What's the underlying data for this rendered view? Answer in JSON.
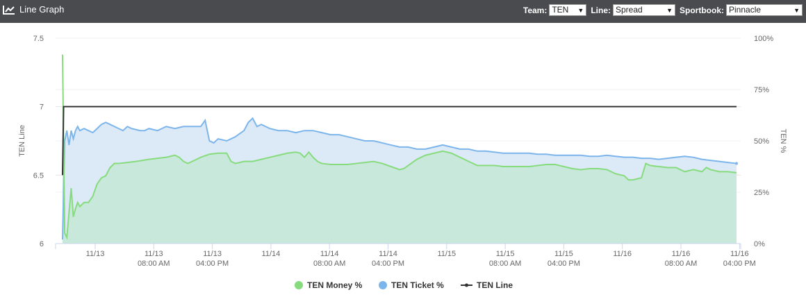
{
  "header": {
    "title": "Line Graph",
    "team_label": "Team:",
    "team_value": "TEN",
    "line_label": "Line:",
    "line_value": "Spread",
    "sportsbook_label": "Sportbook:",
    "sportsbook_value": "Pinnacle"
  },
  "chart_data": {
    "type": "line",
    "left_axis": {
      "label": "TEN Line",
      "range": [
        6,
        7.5
      ],
      "ticks": [
        "6",
        "6.5",
        "7",
        "7.5"
      ]
    },
    "right_axis": {
      "label": "TEN %",
      "range": [
        0,
        100
      ],
      "ticks": [
        "0%",
        "25%",
        "50%",
        "75%",
        "100%"
      ]
    },
    "x_ticks": [
      {
        "line1": "11/13",
        "line2": ""
      },
      {
        "line1": "11/13",
        "line2": "08:00 AM"
      },
      {
        "line1": "11/13",
        "line2": "04:00 PM"
      },
      {
        "line1": "11/14",
        "line2": ""
      },
      {
        "line1": "11/14",
        "line2": "08:00 AM"
      },
      {
        "line1": "11/14",
        "line2": "04:00 PM"
      },
      {
        "line1": "11/15",
        "line2": ""
      },
      {
        "line1": "11/15",
        "line2": "08:00 AM"
      },
      {
        "line1": "11/15",
        "line2": "04:00 PM"
      },
      {
        "line1": "11/16",
        "line2": ""
      },
      {
        "line1": "11/16",
        "line2": "08:00 AM"
      },
      {
        "line1": "11/16",
        "line2": "04:00 PM"
      }
    ],
    "legend": [
      "TEN Money %",
      "TEN Ticket %",
      "TEN Line"
    ],
    "legend_position": "bottom-center",
    "grid": true,
    "series": [
      {
        "name": "TEN Money %",
        "color": "#86dc7c",
        "fill": "#c9e8dc",
        "axis": "right",
        "points": [
          [
            0,
            92
          ],
          [
            0.5,
            5
          ],
          [
            1,
            3
          ],
          [
            1.5,
            15
          ],
          [
            2,
            27
          ],
          [
            2.5,
            13
          ],
          [
            3,
            17
          ],
          [
            3.5,
            20
          ],
          [
            4,
            18
          ],
          [
            5,
            20
          ],
          [
            6,
            20
          ],
          [
            7,
            23
          ],
          [
            8,
            29
          ],
          [
            9,
            32
          ],
          [
            10,
            33
          ],
          [
            11,
            37
          ],
          [
            12,
            39
          ],
          [
            13,
            39
          ],
          [
            15,
            39.5
          ],
          [
            17,
            40
          ],
          [
            20,
            41
          ],
          [
            22,
            41.5
          ],
          [
            24,
            42
          ],
          [
            26,
            43
          ],
          [
            27,
            42
          ],
          [
            28,
            40
          ],
          [
            29,
            39
          ],
          [
            30,
            40
          ],
          [
            32,
            42
          ],
          [
            34,
            43.5
          ],
          [
            36,
            44
          ],
          [
            38,
            44
          ],
          [
            39,
            40
          ],
          [
            40,
            39
          ],
          [
            42,
            40
          ],
          [
            44,
            40
          ],
          [
            46,
            41
          ],
          [
            48,
            42
          ],
          [
            50,
            43
          ],
          [
            52,
            44
          ],
          [
            54,
            44.5
          ],
          [
            55,
            44
          ],
          [
            56,
            42
          ],
          [
            57,
            44.5
          ],
          [
            58,
            42
          ],
          [
            59,
            40
          ],
          [
            60,
            39
          ],
          [
            62,
            38.5
          ],
          [
            64,
            38.5
          ],
          [
            66,
            38.5
          ],
          [
            68,
            39
          ],
          [
            70,
            39.5
          ],
          [
            72,
            40
          ],
          [
            74,
            39
          ],
          [
            76,
            37.5
          ],
          [
            78,
            36
          ],
          [
            79,
            36.5
          ],
          [
            80,
            38
          ],
          [
            82,
            41
          ],
          [
            84,
            43
          ],
          [
            86,
            44
          ],
          [
            88,
            45
          ],
          [
            90,
            44
          ],
          [
            92,
            42
          ],
          [
            94,
            40
          ],
          [
            96,
            38
          ],
          [
            98,
            38
          ],
          [
            100,
            38
          ],
          [
            102,
            37.5
          ],
          [
            104,
            37.5
          ],
          [
            106,
            37.5
          ],
          [
            108,
            37.5
          ],
          [
            110,
            38
          ],
          [
            112,
            38.5
          ],
          [
            114,
            38.5
          ],
          [
            116,
            37.5
          ],
          [
            118,
            36.5
          ],
          [
            120,
            36
          ],
          [
            122,
            36.5
          ],
          [
            124,
            36.5
          ],
          [
            126,
            36
          ],
          [
            128,
            34
          ],
          [
            130,
            33
          ],
          [
            131,
            31
          ],
          [
            132,
            31
          ],
          [
            134,
            32
          ],
          [
            135,
            39
          ],
          [
            136,
            38
          ],
          [
            138,
            37.5
          ],
          [
            140,
            37
          ],
          [
            142,
            37
          ],
          [
            144,
            35
          ],
          [
            146,
            36
          ],
          [
            148,
            35
          ],
          [
            149,
            37
          ],
          [
            150,
            36
          ],
          [
            152,
            35
          ],
          [
            154,
            35
          ],
          [
            156,
            34.5
          ]
        ]
      },
      {
        "name": "TEN Ticket %",
        "color": "#7cb5ec",
        "fill": "#dce9f6",
        "axis": "right",
        "points": [
          [
            0,
            2
          ],
          [
            0.5,
            50
          ],
          [
            1,
            55
          ],
          [
            1.5,
            48
          ],
          [
            2,
            55
          ],
          [
            2.5,
            51
          ],
          [
            3,
            55
          ],
          [
            3.5,
            57
          ],
          [
            4,
            55
          ],
          [
            5,
            56
          ],
          [
            6,
            55
          ],
          [
            7,
            54
          ],
          [
            8,
            56
          ],
          [
            9,
            58
          ],
          [
            10,
            59
          ],
          [
            11,
            58
          ],
          [
            12,
            57
          ],
          [
            13,
            56
          ],
          [
            14,
            55
          ],
          [
            15,
            57
          ],
          [
            16,
            56
          ],
          [
            18,
            55
          ],
          [
            19,
            55
          ],
          [
            20,
            56
          ],
          [
            22,
            55
          ],
          [
            24,
            57
          ],
          [
            26,
            56
          ],
          [
            28,
            57
          ],
          [
            30,
            57
          ],
          [
            32,
            57
          ],
          [
            33,
            60
          ],
          [
            34,
            50
          ],
          [
            35,
            49
          ],
          [
            36,
            51
          ],
          [
            38,
            50
          ],
          [
            40,
            52
          ],
          [
            42,
            55
          ],
          [
            43,
            59
          ],
          [
            44,
            61
          ],
          [
            45,
            57
          ],
          [
            46,
            58
          ],
          [
            48,
            56
          ],
          [
            50,
            55
          ],
          [
            52,
            55
          ],
          [
            54,
            54
          ],
          [
            56,
            55
          ],
          [
            58,
            55
          ],
          [
            60,
            54
          ],
          [
            62,
            53
          ],
          [
            64,
            53
          ],
          [
            66,
            52
          ],
          [
            68,
            51
          ],
          [
            70,
            50
          ],
          [
            72,
            50
          ],
          [
            74,
            49
          ],
          [
            76,
            48
          ],
          [
            78,
            47
          ],
          [
            80,
            47
          ],
          [
            82,
            46
          ],
          [
            84,
            46
          ],
          [
            86,
            47
          ],
          [
            88,
            48
          ],
          [
            90,
            47
          ],
          [
            92,
            46
          ],
          [
            94,
            46
          ],
          [
            96,
            45
          ],
          [
            98,
            45
          ],
          [
            100,
            44.5
          ],
          [
            102,
            44
          ],
          [
            104,
            44
          ],
          [
            106,
            44
          ],
          [
            108,
            44
          ],
          [
            110,
            43.5
          ],
          [
            112,
            43.5
          ],
          [
            114,
            43
          ],
          [
            116,
            43
          ],
          [
            118,
            43
          ],
          [
            120,
            43
          ],
          [
            122,
            42.5
          ],
          [
            124,
            42.5
          ],
          [
            126,
            43
          ],
          [
            128,
            42.5
          ],
          [
            130,
            42
          ],
          [
            132,
            42
          ],
          [
            134,
            41.5
          ],
          [
            136,
            41.5
          ],
          [
            138,
            41
          ],
          [
            140,
            41.5
          ],
          [
            142,
            42
          ],
          [
            144,
            42.5
          ],
          [
            146,
            42
          ],
          [
            148,
            41
          ],
          [
            150,
            40.5
          ],
          [
            152,
            40
          ],
          [
            154,
            39.5
          ],
          [
            156,
            39
          ]
        ]
      },
      {
        "name": "TEN Line",
        "color": "#333333",
        "axis": "left",
        "points": [
          [
            0,
            6.5
          ],
          [
            0.25,
            7
          ],
          [
            156,
            7
          ]
        ]
      }
    ]
  }
}
